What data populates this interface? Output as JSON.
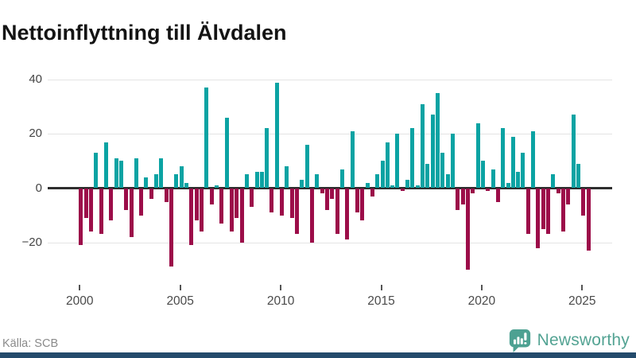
{
  "title": "Nettoinflyttning till Älvdalen",
  "source": "Källa: SCB",
  "branding": {
    "name": "Newsworthy",
    "icon": "newsworthy-speech-bubble-chart-icon"
  },
  "colors": {
    "positive_bar": "#0BA3A3",
    "negative_bar": "#9C0D49",
    "grid": "#e4e4e4",
    "zero_line": "#2e2e2e",
    "axis_text": "#4a4a4a",
    "title_text": "#141414",
    "source_text": "#8a8a8a",
    "brand": "#53A393",
    "footer_strip": "#234A6B"
  },
  "chart_data": {
    "type": "bar",
    "title": "Nettoinflyttning till Älvdalen",
    "xlabel": "",
    "ylabel": "",
    "y_ticks": [
      40,
      20,
      0,
      -20
    ],
    "ylim": [
      -33,
      43
    ],
    "x_tick_labels": [
      "2000",
      "2005",
      "2010",
      "2015",
      "2020",
      "2025"
    ],
    "grid": "horizontal",
    "legend": "none",
    "frequency": "quarterly",
    "start_quarter": "2000-Q1",
    "end_quarter": "2025-Q2",
    "series": [
      {
        "name": "Nettoinflyttning",
        "values": [
          -21,
          -11,
          -16,
          13,
          -17,
          17,
          -12,
          11,
          10,
          -8,
          -18,
          11,
          -10,
          4,
          -4,
          5,
          11,
          -5,
          -29,
          5,
          8,
          2,
          -21,
          -12,
          -16,
          37,
          -6,
          1,
          -13,
          26,
          -16,
          -11,
          -20,
          5,
          -7,
          6,
          6,
          22,
          -9,
          39,
          -10,
          8,
          -11,
          -17,
          3,
          16,
          -20,
          5,
          -2,
          -8,
          -4,
          -17,
          7,
          -19,
          21,
          -9,
          -12,
          2,
          -3,
          5,
          10,
          17,
          1,
          20,
          -1,
          3,
          22,
          1,
          31,
          9,
          27,
          35,
          13,
          5,
          20,
          -8,
          -6,
          -30,
          -2,
          24,
          10,
          -1,
          7,
          -5,
          22,
          2,
          19,
          6,
          13,
          -17,
          21,
          -22,
          -15,
          -17,
          5,
          -2,
          -16,
          -6,
          27,
          9,
          -10,
          -23
        ]
      }
    ]
  }
}
